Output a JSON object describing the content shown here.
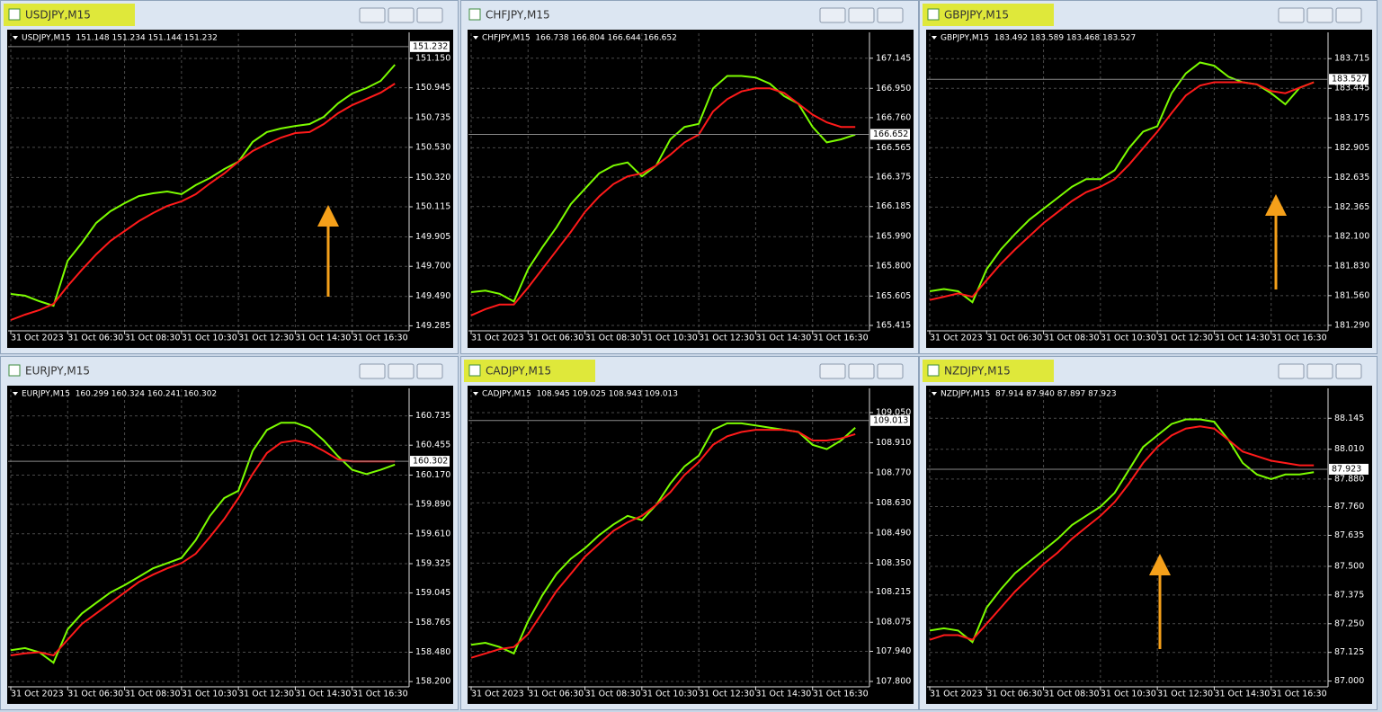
{
  "chart_data": [
    {
      "type": "line",
      "window_title": "USDJPY,M15",
      "title_highlight": true,
      "info": "USDJPY,M15  151.148 151.234 151.144 151.232",
      "last_price": 151.232,
      "xlim": [
        0,
        28
      ],
      "xticks": [
        {
          "value": 0,
          "label": "31 Oct 2023"
        },
        {
          "value": 4,
          "label": "31 Oct 06:30"
        },
        {
          "value": 8,
          "label": "31 Oct 08:30"
        },
        {
          "value": 12,
          "label": "31 Oct 10:30"
        },
        {
          "value": 16,
          "label": "31 Oct 12:30"
        },
        {
          "value": 20,
          "label": "31 Oct 14:30"
        },
        {
          "value": 24,
          "label": "31 Oct 16:30"
        }
      ],
      "ylim": [
        149.25,
        151.275
      ],
      "yticks": [
        149.285,
        {
          "value": 149.49,
          "label": "149.490"
        },
        {
          "value": 149.7,
          "label": "149.700"
        },
        149.905,
        150.115,
        {
          "value": 150.32,
          "label": "150.320"
        },
        {
          "value": 150.53,
          "label": "150.530"
        },
        150.735,
        150.945,
        {
          "value": 151.15,
          "label": "151.150"
        }
      ],
      "grid": true,
      "series": [
        {
          "color": "#7cfc00",
          "values": [
            149.507,
            149.495,
            149.457,
            149.425,
            149.739,
            149.864,
            150.002,
            150.084,
            150.14,
            150.19,
            150.209,
            150.222,
            150.203,
            150.266,
            150.316,
            150.378,
            150.429,
            150.567,
            150.636,
            150.661,
            150.679,
            150.692,
            150.742,
            150.836,
            150.905,
            150.943,
            150.993,
            151.106
          ]
        },
        {
          "color": "#ff1a1a",
          "values": [
            149.325,
            149.363,
            149.394,
            149.438,
            149.563,
            149.676,
            149.783,
            149.877,
            149.946,
            150.015,
            150.071,
            150.121,
            150.153,
            150.203,
            150.278,
            150.347,
            150.429,
            150.504,
            150.554,
            150.598,
            150.629,
            150.636,
            150.692,
            150.767,
            150.824,
            150.867,
            150.911,
            150.974
          ]
        }
      ]
    },
    {
      "type": "line",
      "window_title": "CHFJPY,M15",
      "title_highlight": false,
      "info": "CHFJPY,M15  166.738 166.804 166.644 166.652",
      "last_price": 166.652,
      "xlim": [
        0,
        28
      ],
      "xticks": [
        {
          "value": 0,
          "label": "31 Oct 2023"
        },
        {
          "value": 4,
          "label": "31 Oct 06:30"
        },
        {
          "value": 8,
          "label": "31 Oct 08:30"
        },
        {
          "value": 12,
          "label": "31 Oct 10:30"
        },
        {
          "value": 16,
          "label": "31 Oct 12:30"
        },
        {
          "value": 20,
          "label": "31 Oct 14:30"
        },
        {
          "value": 24,
          "label": "31 Oct 16:30"
        }
      ],
      "ylim": [
        165.38,
        167.26
      ],
      "yticks": [
        165.415,
        165.605,
        {
          "value": 165.8,
          "label": "165.800"
        },
        {
          "value": 165.99,
          "label": "165.990"
        },
        166.185,
        166.375,
        166.565,
        {
          "value": 166.76,
          "label": "166.760"
        },
        {
          "value": 166.95,
          "label": "166.950"
        },
        167.145
      ],
      "grid": true,
      "series": [
        {
          "color": "#7cfc00",
          "values": [
            165.63,
            165.64,
            165.62,
            165.57,
            165.78,
            165.92,
            166.05,
            166.2,
            166.3,
            166.4,
            166.45,
            166.47,
            166.38,
            166.45,
            166.62,
            166.7,
            166.72,
            166.95,
            167.03,
            167.03,
            167.02,
            166.98,
            166.9,
            166.85,
            166.7,
            166.6,
            166.62,
            166.65
          ]
        },
        {
          "color": "#ff1a1a",
          "values": [
            165.48,
            165.52,
            165.55,
            165.55,
            165.66,
            165.78,
            165.9,
            166.02,
            166.15,
            166.25,
            166.33,
            166.38,
            166.4,
            166.45,
            166.52,
            166.6,
            166.65,
            166.8,
            166.88,
            166.93,
            166.95,
            166.95,
            166.92,
            166.85,
            166.78,
            166.73,
            166.7,
            166.7
          ]
        }
      ]
    },
    {
      "type": "line",
      "window_title": "GBPJPY,M15",
      "title_highlight": true,
      "info": "GBPJPY,M15  183.492 183.589 183.468 183.527",
      "last_price": 183.527,
      "xlim": [
        0,
        28
      ],
      "xticks": [
        {
          "value": 0,
          "label": "31 Oct 2023"
        },
        {
          "value": 4,
          "label": "31 Oct 06:30"
        },
        {
          "value": 8,
          "label": "31 Oct 08:30"
        },
        {
          "value": 12,
          "label": "31 Oct 10:30"
        },
        {
          "value": 16,
          "label": "31 Oct 12:30"
        },
        {
          "value": 20,
          "label": "31 Oct 14:30"
        },
        {
          "value": 24,
          "label": "31 Oct 16:30"
        }
      ],
      "ylim": [
        181.24,
        183.88
      ],
      "yticks": [
        {
          "value": 181.29,
          "label": "181.290"
        },
        {
          "value": 181.56,
          "label": "181.560"
        },
        {
          "value": 181.83,
          "label": "181.830"
        },
        {
          "value": 182.1,
          "label": "182.100"
        },
        182.365,
        182.635,
        182.905,
        183.175,
        183.445,
        183.715
      ],
      "grid": true,
      "series": [
        {
          "color": "#7cfc00",
          "values": [
            181.6,
            181.62,
            181.6,
            181.5,
            181.8,
            181.98,
            182.12,
            182.25,
            182.35,
            182.45,
            182.55,
            182.62,
            182.62,
            182.7,
            182.9,
            183.05,
            183.1,
            183.4,
            183.58,
            183.68,
            183.65,
            183.55,
            183.5,
            183.48,
            183.4,
            183.3,
            183.45,
            183.5
          ]
        },
        {
          "color": "#ff1a1a",
          "values": [
            181.52,
            181.55,
            181.58,
            181.55,
            181.7,
            181.85,
            181.98,
            182.1,
            182.22,
            182.32,
            182.42,
            182.5,
            182.55,
            182.62,
            182.75,
            182.9,
            183.05,
            183.22,
            183.38,
            183.47,
            183.5,
            183.5,
            183.5,
            183.48,
            183.42,
            183.4,
            183.45,
            183.5
          ]
        }
      ]
    },
    {
      "type": "line",
      "window_title": "EURJPY,M15",
      "title_highlight": false,
      "info": "EURJPY,M15  160.299 160.324 160.241 160.302",
      "last_price": 160.302,
      "xlim": [
        0,
        28
      ],
      "xticks": [
        {
          "value": 0,
          "label": "31 Oct 2023"
        },
        {
          "value": 4,
          "label": "31 Oct 06:30"
        },
        {
          "value": 8,
          "label": "31 Oct 08:30"
        },
        {
          "value": 12,
          "label": "31 Oct 10:30"
        },
        {
          "value": 16,
          "label": "31 Oct 12:30"
        },
        {
          "value": 20,
          "label": "31 Oct 14:30"
        },
        {
          "value": 24,
          "label": "31 Oct 16:30"
        }
      ],
      "ylim": [
        158.15,
        160.92
      ],
      "yticks": [
        {
          "value": 158.2,
          "label": "158.200"
        },
        {
          "value": 158.48,
          "label": "158.480"
        },
        158.765,
        159.045,
        159.325,
        {
          "value": 159.61,
          "label": "159.610"
        },
        {
          "value": 159.89,
          "label": "159.890"
        },
        {
          "value": 160.17,
          "label": "160.170"
        },
        160.455,
        160.735
      ],
      "grid": true,
      "series": [
        {
          "color": "#7cfc00",
          "values": [
            158.5,
            158.52,
            158.48,
            158.38,
            158.7,
            158.85,
            158.95,
            159.05,
            159.12,
            159.2,
            159.28,
            159.33,
            159.38,
            159.55,
            159.78,
            159.95,
            160.02,
            160.4,
            160.6,
            160.67,
            160.67,
            160.62,
            160.5,
            160.35,
            160.22,
            160.18,
            160.22,
            160.27
          ]
        },
        {
          "color": "#ff1a1a",
          "values": [
            158.45,
            158.47,
            158.48,
            158.45,
            158.6,
            158.75,
            158.85,
            158.95,
            159.05,
            159.15,
            159.22,
            159.28,
            159.33,
            159.42,
            159.58,
            159.75,
            159.95,
            160.18,
            160.38,
            160.48,
            160.5,
            160.47,
            160.4,
            160.32,
            160.3,
            160.3,
            160.3,
            160.3
          ]
        }
      ]
    },
    {
      "type": "line",
      "window_title": "CADJPY,M15",
      "title_highlight": true,
      "info": "CADJPY,M15  108.945 109.025 108.943 109.013",
      "last_price": 109.013,
      "xlim": [
        0,
        28
      ],
      "xticks": [
        {
          "value": 0,
          "label": "31 Oct 2023"
        },
        {
          "value": 4,
          "label": "31 Oct 06:30"
        },
        {
          "value": 8,
          "label": "31 Oct 08:30"
        },
        {
          "value": 12,
          "label": "31 Oct 10:30"
        },
        {
          "value": 16,
          "label": "31 Oct 12:30"
        },
        {
          "value": 20,
          "label": "31 Oct 14:30"
        },
        {
          "value": 24,
          "label": "31 Oct 16:30"
        }
      ],
      "ylim": [
        107.775,
        109.125
      ],
      "yticks": [
        {
          "value": 107.8,
          "label": "107.800"
        },
        {
          "value": 107.94,
          "label": "107.940"
        },
        108.075,
        108.215,
        {
          "value": 108.35,
          "label": "108.350"
        },
        {
          "value": 108.49,
          "label": "108.490"
        },
        {
          "value": 108.63,
          "label": "108.630"
        },
        {
          "value": 108.77,
          "label": "108.770"
        },
        {
          "value": 108.91,
          "label": "108.910"
        },
        {
          "value": 109.05,
          "label": "109.050"
        }
      ],
      "grid": true,
      "series": [
        {
          "color": "#7cfc00",
          "values": [
            107.97,
            107.98,
            107.96,
            107.93,
            108.08,
            108.2,
            108.3,
            108.37,
            108.42,
            108.48,
            108.53,
            108.57,
            108.55,
            108.62,
            108.72,
            108.8,
            108.85,
            108.97,
            109.0,
            109.0,
            108.99,
            108.98,
            108.97,
            108.96,
            108.9,
            108.88,
            108.92,
            108.98
          ]
        },
        {
          "color": "#ff1a1a",
          "values": [
            107.91,
            107.93,
            107.95,
            107.96,
            108.02,
            108.12,
            108.22,
            108.3,
            108.38,
            108.44,
            108.5,
            108.54,
            108.57,
            108.62,
            108.68,
            108.76,
            108.82,
            108.9,
            108.94,
            108.96,
            108.97,
            108.97,
            108.97,
            108.96,
            108.92,
            108.92,
            108.93,
            108.95
          ]
        }
      ]
    },
    {
      "type": "line",
      "window_title": "NZDJPY,M15",
      "title_highlight": true,
      "info": "NZDJPY,M15  87.914 87.940 87.897 87.923",
      "last_price": 87.923,
      "xlim": [
        0,
        28
      ],
      "xticks": [
        {
          "value": 0,
          "label": "31 Oct 2023"
        },
        {
          "value": 4,
          "label": "31 Oct 06:30"
        },
        {
          "value": 8,
          "label": "31 Oct 08:30"
        },
        {
          "value": 12,
          "label": "31 Oct 10:30"
        },
        {
          "value": 16,
          "label": "31 Oct 12:30"
        },
        {
          "value": 20,
          "label": "31 Oct 14:30"
        },
        {
          "value": 24,
          "label": "31 Oct 16:30"
        }
      ],
      "ylim": [
        86.975,
        88.24
      ],
      "yticks": [
        {
          "value": 87,
          "label": "87.000"
        },
        87.125,
        {
          "value": 87.25,
          "label": "87.250"
        },
        87.375,
        {
          "value": 87.5,
          "label": "87.500"
        },
        87.635,
        {
          "value": 87.76,
          "label": "87.760"
        },
        {
          "value": 87.88,
          "label": "87.880"
        },
        {
          "value": 88.01,
          "label": "88.010"
        },
        88.145
      ],
      "grid": true,
      "series": [
        {
          "color": "#7cfc00",
          "values": [
            87.22,
            87.23,
            87.22,
            87.17,
            87.32,
            87.4,
            87.47,
            87.52,
            87.57,
            87.62,
            87.68,
            87.72,
            87.76,
            87.82,
            87.92,
            88.02,
            88.07,
            88.12,
            88.14,
            88.14,
            88.13,
            88.05,
            87.95,
            87.9,
            87.88,
            87.9,
            87.9,
            87.91
          ]
        },
        {
          "color": "#ff1a1a",
          "values": [
            87.18,
            87.2,
            87.2,
            87.18,
            87.25,
            87.32,
            87.39,
            87.45,
            87.51,
            87.56,
            87.62,
            87.67,
            87.72,
            87.78,
            87.86,
            87.95,
            88.02,
            88.07,
            88.1,
            88.11,
            88.1,
            88.05,
            88.0,
            87.98,
            87.96,
            87.95,
            87.94,
            87.94
          ]
        }
      ]
    }
  ]
}
